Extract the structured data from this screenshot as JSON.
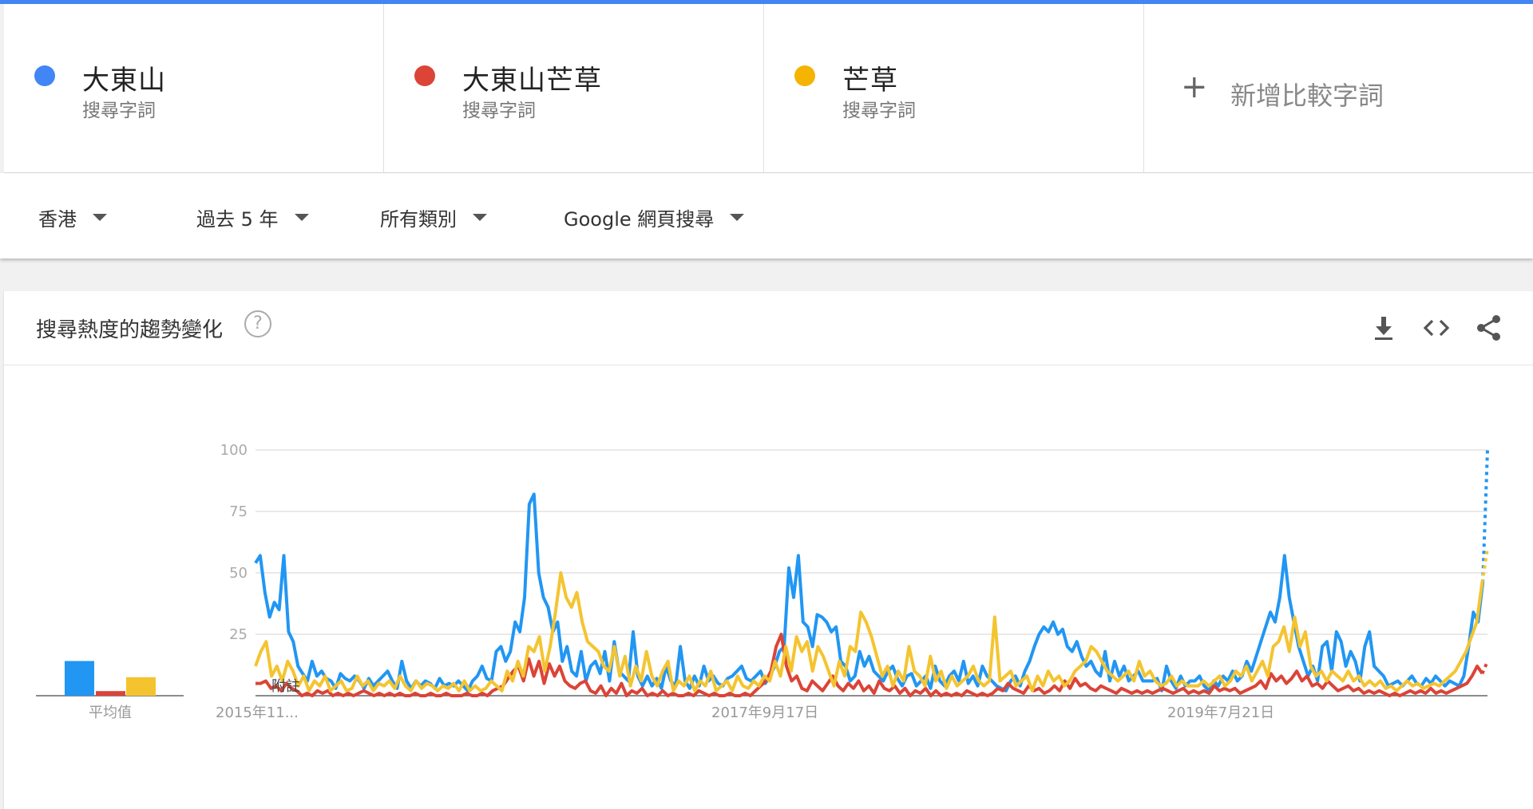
{
  "terms": [
    {
      "name": "大東山",
      "sub": "搜尋字詞",
      "color": "#4285f4"
    },
    {
      "name": "大東山芒草",
      "sub": "搜尋字詞",
      "color": "#db4437"
    },
    {
      "name": "芒草",
      "sub": "搜尋字詞",
      "color": "#f4b400"
    }
  ],
  "add_term": {
    "plus": "+",
    "label": "新增比較字詞"
  },
  "filters": {
    "region": "香港",
    "time": "過去 5 年",
    "category": "所有類別",
    "source": "Google 網頁搜尋"
  },
  "card": {
    "title": "搜尋熱度的趨勢變化",
    "help": "?"
  },
  "icons": {
    "download": "download-icon",
    "embed": "embed-code-icon",
    "share": "share-icon"
  },
  "chart_data": {
    "type": "line",
    "ylim": [
      0,
      100
    ],
    "yticks": [
      25,
      50,
      75,
      100
    ],
    "xtick_labels": [
      "2015年11...",
      "2017年9月17日",
      "2019年7月21日"
    ],
    "annotation": "附註",
    "average_label": "平均值",
    "averages": [
      {
        "color": "#2196f3",
        "value": 15
      },
      {
        "color": "#db4437",
        "value": 2
      },
      {
        "color": "#f4c430",
        "value": 8
      }
    ],
    "series": [
      {
        "color": "#2196f3",
        "values": [
          54,
          57,
          42,
          32,
          38,
          35,
          57,
          26,
          22,
          12,
          9,
          6,
          14,
          8,
          10,
          7,
          6,
          3,
          9,
          7,
          6,
          8,
          6,
          3,
          7,
          4,
          6,
          8,
          10,
          6,
          3,
          14,
          6,
          3,
          6,
          4,
          6,
          5,
          3,
          7,
          4,
          5,
          4,
          6,
          4,
          2,
          6,
          8,
          12,
          7,
          6,
          18,
          20,
          14,
          18,
          30,
          26,
          40,
          78,
          82,
          50,
          40,
          36,
          26,
          30,
          14,
          20,
          10,
          8,
          18,
          6,
          12,
          14,
          9,
          18,
          6,
          22,
          10,
          8,
          6,
          26,
          8,
          4,
          8,
          4,
          7,
          3,
          12,
          6,
          4,
          20,
          6,
          3,
          8,
          4,
          12,
          6,
          8,
          5,
          4,
          7,
          8,
          10,
          12,
          7,
          6,
          8,
          10,
          5,
          8,
          12,
          18,
          20,
          52,
          40,
          57,
          30,
          28,
          20,
          33,
          32,
          30,
          26,
          28,
          14,
          12,
          6,
          8,
          18,
          12,
          16,
          10,
          8,
          6,
          10,
          12,
          7,
          4,
          8,
          9,
          4,
          6,
          8,
          3,
          12,
          6,
          4,
          8,
          10,
          6,
          14,
          5,
          8,
          4,
          12,
          8,
          6,
          4,
          3,
          2,
          6,
          8,
          4,
          10,
          14,
          20,
          25,
          28,
          26,
          30,
          25,
          27,
          20,
          18,
          22,
          16,
          12,
          14,
          10,
          8,
          18,
          6,
          14,
          8,
          12,
          6,
          8,
          10,
          6,
          6,
          6,
          7,
          2,
          12,
          6,
          3,
          8,
          4,
          6,
          6,
          8,
          4,
          2,
          6,
          4,
          8,
          6,
          10,
          6,
          8,
          14,
          10,
          16,
          22,
          28,
          34,
          30,
          40,
          57,
          40,
          30,
          20,
          14,
          8,
          12,
          6,
          20,
          22,
          10,
          26,
          22,
          12,
          18,
          14,
          6,
          20,
          26,
          12,
          10,
          8,
          4,
          5,
          6,
          4,
          6,
          8,
          5,
          4,
          7,
          5,
          8,
          6,
          4,
          6,
          5,
          4,
          8,
          20,
          34,
          30,
          46,
          100
        ]
      },
      {
        "color": "#db4437",
        "values": [
          5,
          5,
          6,
          3,
          4,
          2,
          5,
          3,
          2,
          0,
          1,
          0,
          2,
          1,
          2,
          0,
          1,
          0,
          1,
          0,
          1,
          2,
          1,
          0,
          1,
          0,
          1,
          0,
          1,
          0,
          0,
          1,
          0,
          0,
          1,
          0,
          0,
          1,
          0,
          0,
          0,
          1,
          0,
          0,
          1,
          0,
          2,
          3,
          4,
          7,
          10,
          12,
          6,
          15,
          8,
          14,
          5,
          13,
          8,
          12,
          6,
          4,
          3,
          5,
          6,
          2,
          1,
          4,
          0,
          3,
          1,
          5,
          0,
          2,
          1,
          3,
          0,
          1,
          0,
          2,
          0,
          1,
          0,
          0,
          1,
          0,
          2,
          1,
          0,
          1,
          0,
          0,
          1,
          0,
          0,
          1,
          0,
          2,
          4,
          6,
          10,
          20,
          25,
          12,
          6,
          8,
          3,
          2,
          6,
          4,
          2,
          5,
          8,
          4,
          2,
          5,
          3,
          6,
          2,
          4,
          1,
          6,
          3,
          2,
          4,
          1,
          3,
          0,
          2,
          1,
          3,
          0,
          2,
          0,
          1,
          0,
          1,
          0,
          2,
          1,
          0,
          1,
          0,
          1,
          3,
          2,
          5,
          3,
          2,
          1,
          4,
          2,
          3,
          1,
          2,
          4,
          2,
          6,
          3,
          7,
          4,
          5,
          3,
          2,
          4,
          3,
          2,
          1,
          3,
          2,
          1,
          2,
          1,
          2,
          1,
          2,
          3,
          2,
          1,
          2,
          3,
          1,
          2,
          1,
          2,
          1,
          4,
          2,
          3,
          2,
          3,
          1,
          2,
          3,
          4,
          6,
          3,
          9,
          6,
          8,
          5,
          7,
          10,
          6,
          8,
          4,
          5,
          3,
          6,
          4,
          2,
          3,
          4,
          2,
          3,
          1,
          2,
          1,
          2,
          1,
          0,
          1,
          0,
          1,
          2,
          1,
          2,
          1,
          3,
          1,
          2,
          1,
          2,
          3,
          4,
          5,
          8,
          12,
          9,
          14
        ]
      },
      {
        "color": "#f4c430",
        "values": [
          12,
          18,
          22,
          8,
          12,
          6,
          14,
          10,
          4,
          8,
          2,
          6,
          4,
          8,
          2,
          4,
          6,
          2,
          3,
          8,
          4,
          6,
          2,
          5,
          4,
          6,
          3,
          8,
          4,
          2,
          6,
          3,
          5,
          4,
          2,
          4,
          3,
          5,
          2,
          6,
          2,
          4,
          2,
          3,
          6,
          4,
          2,
          10,
          6,
          14,
          8,
          20,
          18,
          24,
          10,
          20,
          34,
          50,
          40,
          36,
          42,
          30,
          22,
          20,
          18,
          12,
          10,
          20,
          8,
          16,
          4,
          12,
          6,
          18,
          8,
          4,
          10,
          14,
          2,
          6,
          4,
          8,
          2,
          6,
          4,
          10,
          2,
          4,
          6,
          2,
          8,
          4,
          3,
          6,
          4,
          8,
          6,
          14,
          8,
          20,
          10,
          24,
          18,
          22,
          10,
          20,
          16,
          10,
          4,
          14,
          8,
          20,
          18,
          34,
          30,
          24,
          16,
          8,
          12,
          4,
          10,
          6,
          20,
          10,
          8,
          4,
          16,
          6,
          10,
          3,
          8,
          4,
          6,
          8,
          12,
          6,
          4,
          6,
          32,
          6,
          8,
          10,
          4,
          6,
          8,
          2,
          8,
          4,
          10,
          6,
          8,
          4,
          6,
          10,
          12,
          14,
          20,
          18,
          14,
          10,
          8,
          6,
          8,
          10,
          6,
          14,
          8,
          10,
          6,
          4,
          5,
          8,
          4,
          6,
          4,
          4,
          4,
          6,
          4,
          6,
          8,
          4,
          6,
          10,
          8,
          12,
          6,
          10,
          14,
          8,
          20,
          22,
          28,
          18,
          32,
          20,
          26,
          12,
          8,
          10,
          6,
          10,
          8,
          6,
          10,
          6,
          8,
          4,
          6,
          4,
          6,
          3,
          4,
          2,
          4,
          6,
          4,
          5,
          3,
          4,
          5,
          4,
          6,
          8,
          10,
          14,
          18,
          24,
          30,
          46,
          60
        ]
      }
    ]
  }
}
